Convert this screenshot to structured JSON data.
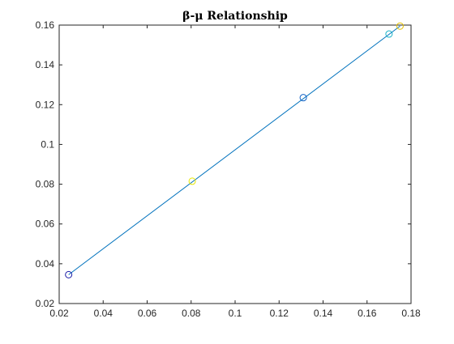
{
  "chart_data": {
    "type": "line",
    "title": "β-μ Relationship",
    "xlabel": "",
    "ylabel": "",
    "xlim": [
      0.02,
      0.18
    ],
    "ylim": [
      0.02,
      0.16
    ],
    "xticks": [
      0.02,
      0.04,
      0.06,
      0.08,
      0.1,
      0.12,
      0.14,
      0.16,
      0.18
    ],
    "xtick_labels": [
      "0.02",
      "0.04",
      "0.06",
      "0.08",
      "0.1",
      "0.12",
      "0.14",
      "0.16",
      "0.18"
    ],
    "yticks": [
      0.02,
      0.04,
      0.06,
      0.08,
      0.1,
      0.12,
      0.14,
      0.16
    ],
    "ytick_labels": [
      "0.02",
      "0.04",
      "0.06",
      "0.08",
      "0.1",
      "0.12",
      "0.14",
      "0.16"
    ],
    "grid": false,
    "line": {
      "color": "#0072bd",
      "x": [
        0.0243,
        0.175
      ],
      "y": [
        0.0345,
        0.1595
      ]
    },
    "markers": {
      "shape": "circle-open",
      "points": [
        {
          "x": 0.0243,
          "y": 0.0345,
          "color": "#1a1aa6"
        },
        {
          "x": 0.0805,
          "y": 0.0815,
          "color": "#e6e600"
        },
        {
          "x": 0.131,
          "y": 0.1235,
          "color": "#0d5fc4"
        },
        {
          "x": 0.17,
          "y": 0.1555,
          "color": "#1ab3c8"
        },
        {
          "x": 0.175,
          "y": 0.1595,
          "color": "#e6c000"
        }
      ]
    },
    "axis_color": "#262626"
  }
}
